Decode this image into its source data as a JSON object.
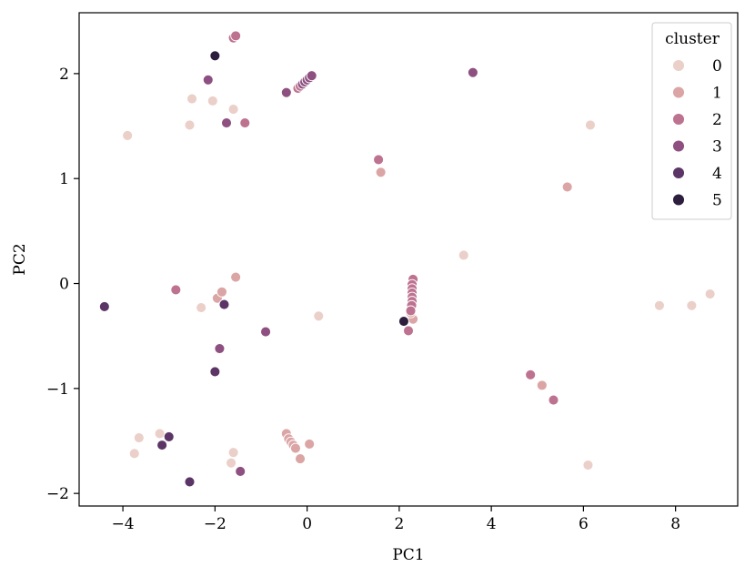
{
  "chart_data": {
    "type": "scatter",
    "title": "",
    "xlabel": "PC1",
    "ylabel": "PC2",
    "xlim": [
      -4.95,
      9.35
    ],
    "ylim": [
      -2.12,
      2.58
    ],
    "xticks": [
      -4,
      -2,
      0,
      2,
      4,
      6,
      8
    ],
    "yticks": [
      -2,
      -1,
      0,
      1,
      2
    ],
    "xtick_labels": [
      "−4",
      "−2",
      "0",
      "2",
      "4",
      "6",
      "8"
    ],
    "ytick_labels": [
      "−2",
      "−1",
      "0",
      "1",
      "2"
    ],
    "grid": false,
    "legend": {
      "title": "cluster",
      "placement": "top-right"
    },
    "series": [
      {
        "name": "0",
        "color": "#ebcfc9",
        "points": [
          [
            -3.9,
            1.41
          ],
          [
            -2.5,
            1.76
          ],
          [
            -2.55,
            1.51
          ],
          [
            -2.05,
            1.74
          ],
          [
            -1.6,
            1.66
          ],
          [
            6.15,
            1.51
          ],
          [
            3.4,
            0.27
          ],
          [
            -2.3,
            -0.23
          ],
          [
            0.25,
            -0.31
          ],
          [
            7.65,
            -0.21
          ],
          [
            8.35,
            -0.21
          ],
          [
            8.75,
            -0.1
          ],
          [
            -3.65,
            -1.47
          ],
          [
            -3.2,
            -1.43
          ],
          [
            -3.75,
            -1.62
          ],
          [
            -1.6,
            -1.61
          ],
          [
            -1.65,
            -1.71
          ],
          [
            6.1,
            -1.73
          ]
        ]
      },
      {
        "name": "1",
        "color": "#dba5a5",
        "points": [
          [
            1.6,
            1.06
          ],
          [
            5.65,
            0.92
          ],
          [
            -1.55,
            0.06
          ],
          [
            -1.95,
            -0.14
          ],
          [
            -1.85,
            -0.08
          ],
          [
            5.1,
            -0.97
          ],
          [
            -0.45,
            -1.43
          ],
          [
            -0.4,
            -1.48
          ],
          [
            -0.35,
            -1.51
          ],
          [
            -0.3,
            -1.54
          ],
          [
            -0.25,
            -1.57
          ],
          [
            0.05,
            -1.53
          ],
          [
            -0.15,
            -1.67
          ],
          [
            2.3,
            -0.34
          ],
          [
            2.25,
            -0.28
          ]
        ]
      },
      {
        "name": "2",
        "color": "#bd7390",
        "points": [
          [
            -1.6,
            2.34
          ],
          [
            -1.55,
            2.36
          ],
          [
            1.55,
            1.18
          ],
          [
            -1.35,
            1.53
          ],
          [
            -2.85,
            -0.06
          ],
          [
            4.85,
            -0.87
          ],
          [
            5.35,
            -1.11
          ],
          [
            2.3,
            0.04
          ],
          [
            2.28,
            -0.01
          ],
          [
            2.28,
            -0.05
          ],
          [
            2.28,
            -0.09
          ],
          [
            2.28,
            -0.13
          ],
          [
            2.28,
            -0.17
          ],
          [
            2.27,
            -0.21
          ],
          [
            2.25,
            -0.26
          ],
          [
            2.2,
            -0.45
          ],
          [
            -0.2,
            1.86
          ],
          [
            -0.15,
            1.88
          ]
        ]
      },
      {
        "name": "3",
        "color": "#8e5080",
        "points": [
          [
            -2.15,
            1.94
          ],
          [
            -1.75,
            1.53
          ],
          [
            -0.45,
            1.82
          ],
          [
            -0.1,
            1.9
          ],
          [
            -0.05,
            1.92
          ],
          [
            0.0,
            1.94
          ],
          [
            0.05,
            1.96
          ],
          [
            0.1,
            1.98
          ],
          [
            3.6,
            2.01
          ],
          [
            -0.9,
            -0.46
          ],
          [
            -1.9,
            -0.62
          ],
          [
            -1.45,
            -1.79
          ]
        ]
      },
      {
        "name": "4",
        "color": "#5c3567",
        "points": [
          [
            -4.4,
            -0.22
          ],
          [
            -1.8,
            -0.2
          ],
          [
            -2.0,
            -0.84
          ],
          [
            -3.0,
            -1.46
          ],
          [
            -3.15,
            -1.54
          ],
          [
            -2.55,
            -1.89
          ]
        ]
      },
      {
        "name": "5",
        "color": "#2d1e3e",
        "points": [
          [
            -2.0,
            2.17
          ],
          [
            2.1,
            -0.36
          ]
        ]
      }
    ]
  }
}
